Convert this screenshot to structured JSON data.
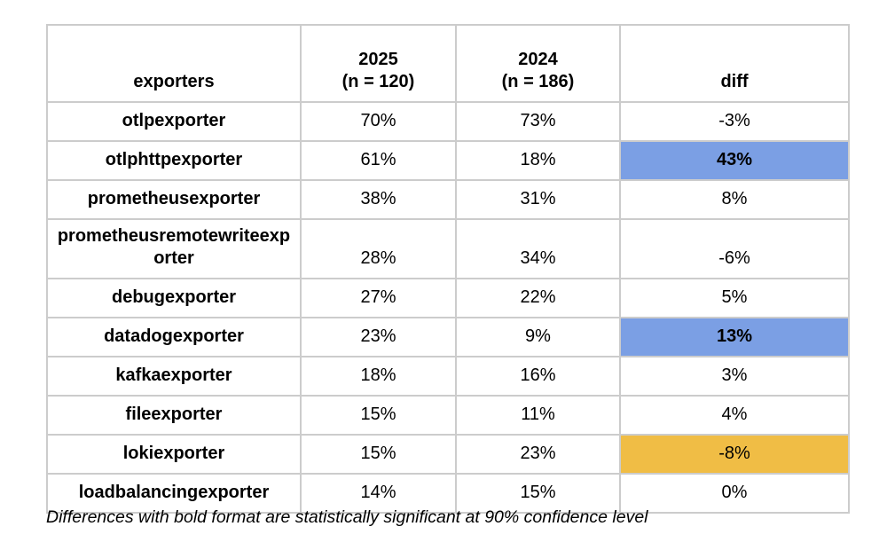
{
  "colors": {
    "highlight_blue": "#7b9fe4",
    "highlight_gold": "#f0bd45",
    "border": "#cccccc"
  },
  "table": {
    "header": {
      "exporters": "exporters",
      "col2025": "2025\n(n = 120)",
      "col2024": "2024\n(n = 186)",
      "diff": "diff"
    },
    "rows": [
      {
        "name": "otlpexporter",
        "y2025": "70%",
        "y2024": "73%",
        "diff": "-3%",
        "highlight": "none",
        "bold_diff": false
      },
      {
        "name": "otlphttpexporter",
        "y2025": "61%",
        "y2024": "18%",
        "diff": "43%",
        "highlight": "blue",
        "bold_diff": true
      },
      {
        "name": "prometheusexporter",
        "y2025": "38%",
        "y2024": "31%",
        "diff": "8%",
        "highlight": "none",
        "bold_diff": false
      },
      {
        "name": "prometheusremotewriteexporter",
        "y2025": "28%",
        "y2024": "34%",
        "diff": "-6%",
        "highlight": "none",
        "bold_diff": false
      },
      {
        "name": "debugexporter",
        "y2025": "27%",
        "y2024": "22%",
        "diff": "5%",
        "highlight": "none",
        "bold_diff": false
      },
      {
        "name": "datadogexporter",
        "y2025": "23%",
        "y2024": "9%",
        "diff": "13%",
        "highlight": "blue",
        "bold_diff": true
      },
      {
        "name": "kafkaexporter",
        "y2025": "18%",
        "y2024": "16%",
        "diff": "3%",
        "highlight": "none",
        "bold_diff": false
      },
      {
        "name": "fileexporter",
        "y2025": "15%",
        "y2024": "11%",
        "diff": "4%",
        "highlight": "none",
        "bold_diff": false
      },
      {
        "name": "lokiexporter",
        "y2025": "15%",
        "y2024": "23%",
        "diff": "-8%",
        "highlight": "gold",
        "bold_diff": false
      },
      {
        "name": "loadbalancingexporter",
        "y2025": "14%",
        "y2024": "15%",
        "diff": "0%",
        "highlight": "none",
        "bold_diff": false
      }
    ]
  },
  "footnote": "Differences with bold format are statistically significant at 90% confidence level",
  "chart_data": {
    "type": "table",
    "title": "",
    "columns": [
      "exporters",
      "2025 (n = 120)",
      "2024 (n = 186)",
      "diff"
    ],
    "categories": [
      "otlpexporter",
      "otlphttpexporter",
      "prometheusexporter",
      "prometheusremotewriteexporter",
      "debugexporter",
      "datadogexporter",
      "kafkaexporter",
      "fileexporter",
      "lokiexporter",
      "loadbalancingexporter"
    ],
    "series": [
      {
        "name": "2025",
        "n": 120,
        "unit": "%",
        "values": [
          70,
          61,
          38,
          28,
          27,
          23,
          18,
          15,
          15,
          14
        ]
      },
      {
        "name": "2024",
        "n": 186,
        "unit": "%",
        "values": [
          73,
          18,
          31,
          34,
          22,
          9,
          16,
          11,
          23,
          15
        ]
      },
      {
        "name": "diff",
        "unit": "%",
        "values": [
          -3,
          43,
          8,
          -6,
          5,
          13,
          3,
          4,
          -8,
          0
        ]
      }
    ],
    "significant_increase_rows": [
      "otlphttpexporter",
      "datadogexporter"
    ],
    "significant_decrease_rows": [
      "lokiexporter"
    ],
    "annotations": [
      "Differences with bold format are statistically significant at 90% confidence level"
    ],
    "layout_hints": {
      "grid": "full-borders",
      "highlight_blue_cells": "bold diff values 43% and 13%",
      "highlight_gold_cells": "diff value -8%"
    }
  }
}
